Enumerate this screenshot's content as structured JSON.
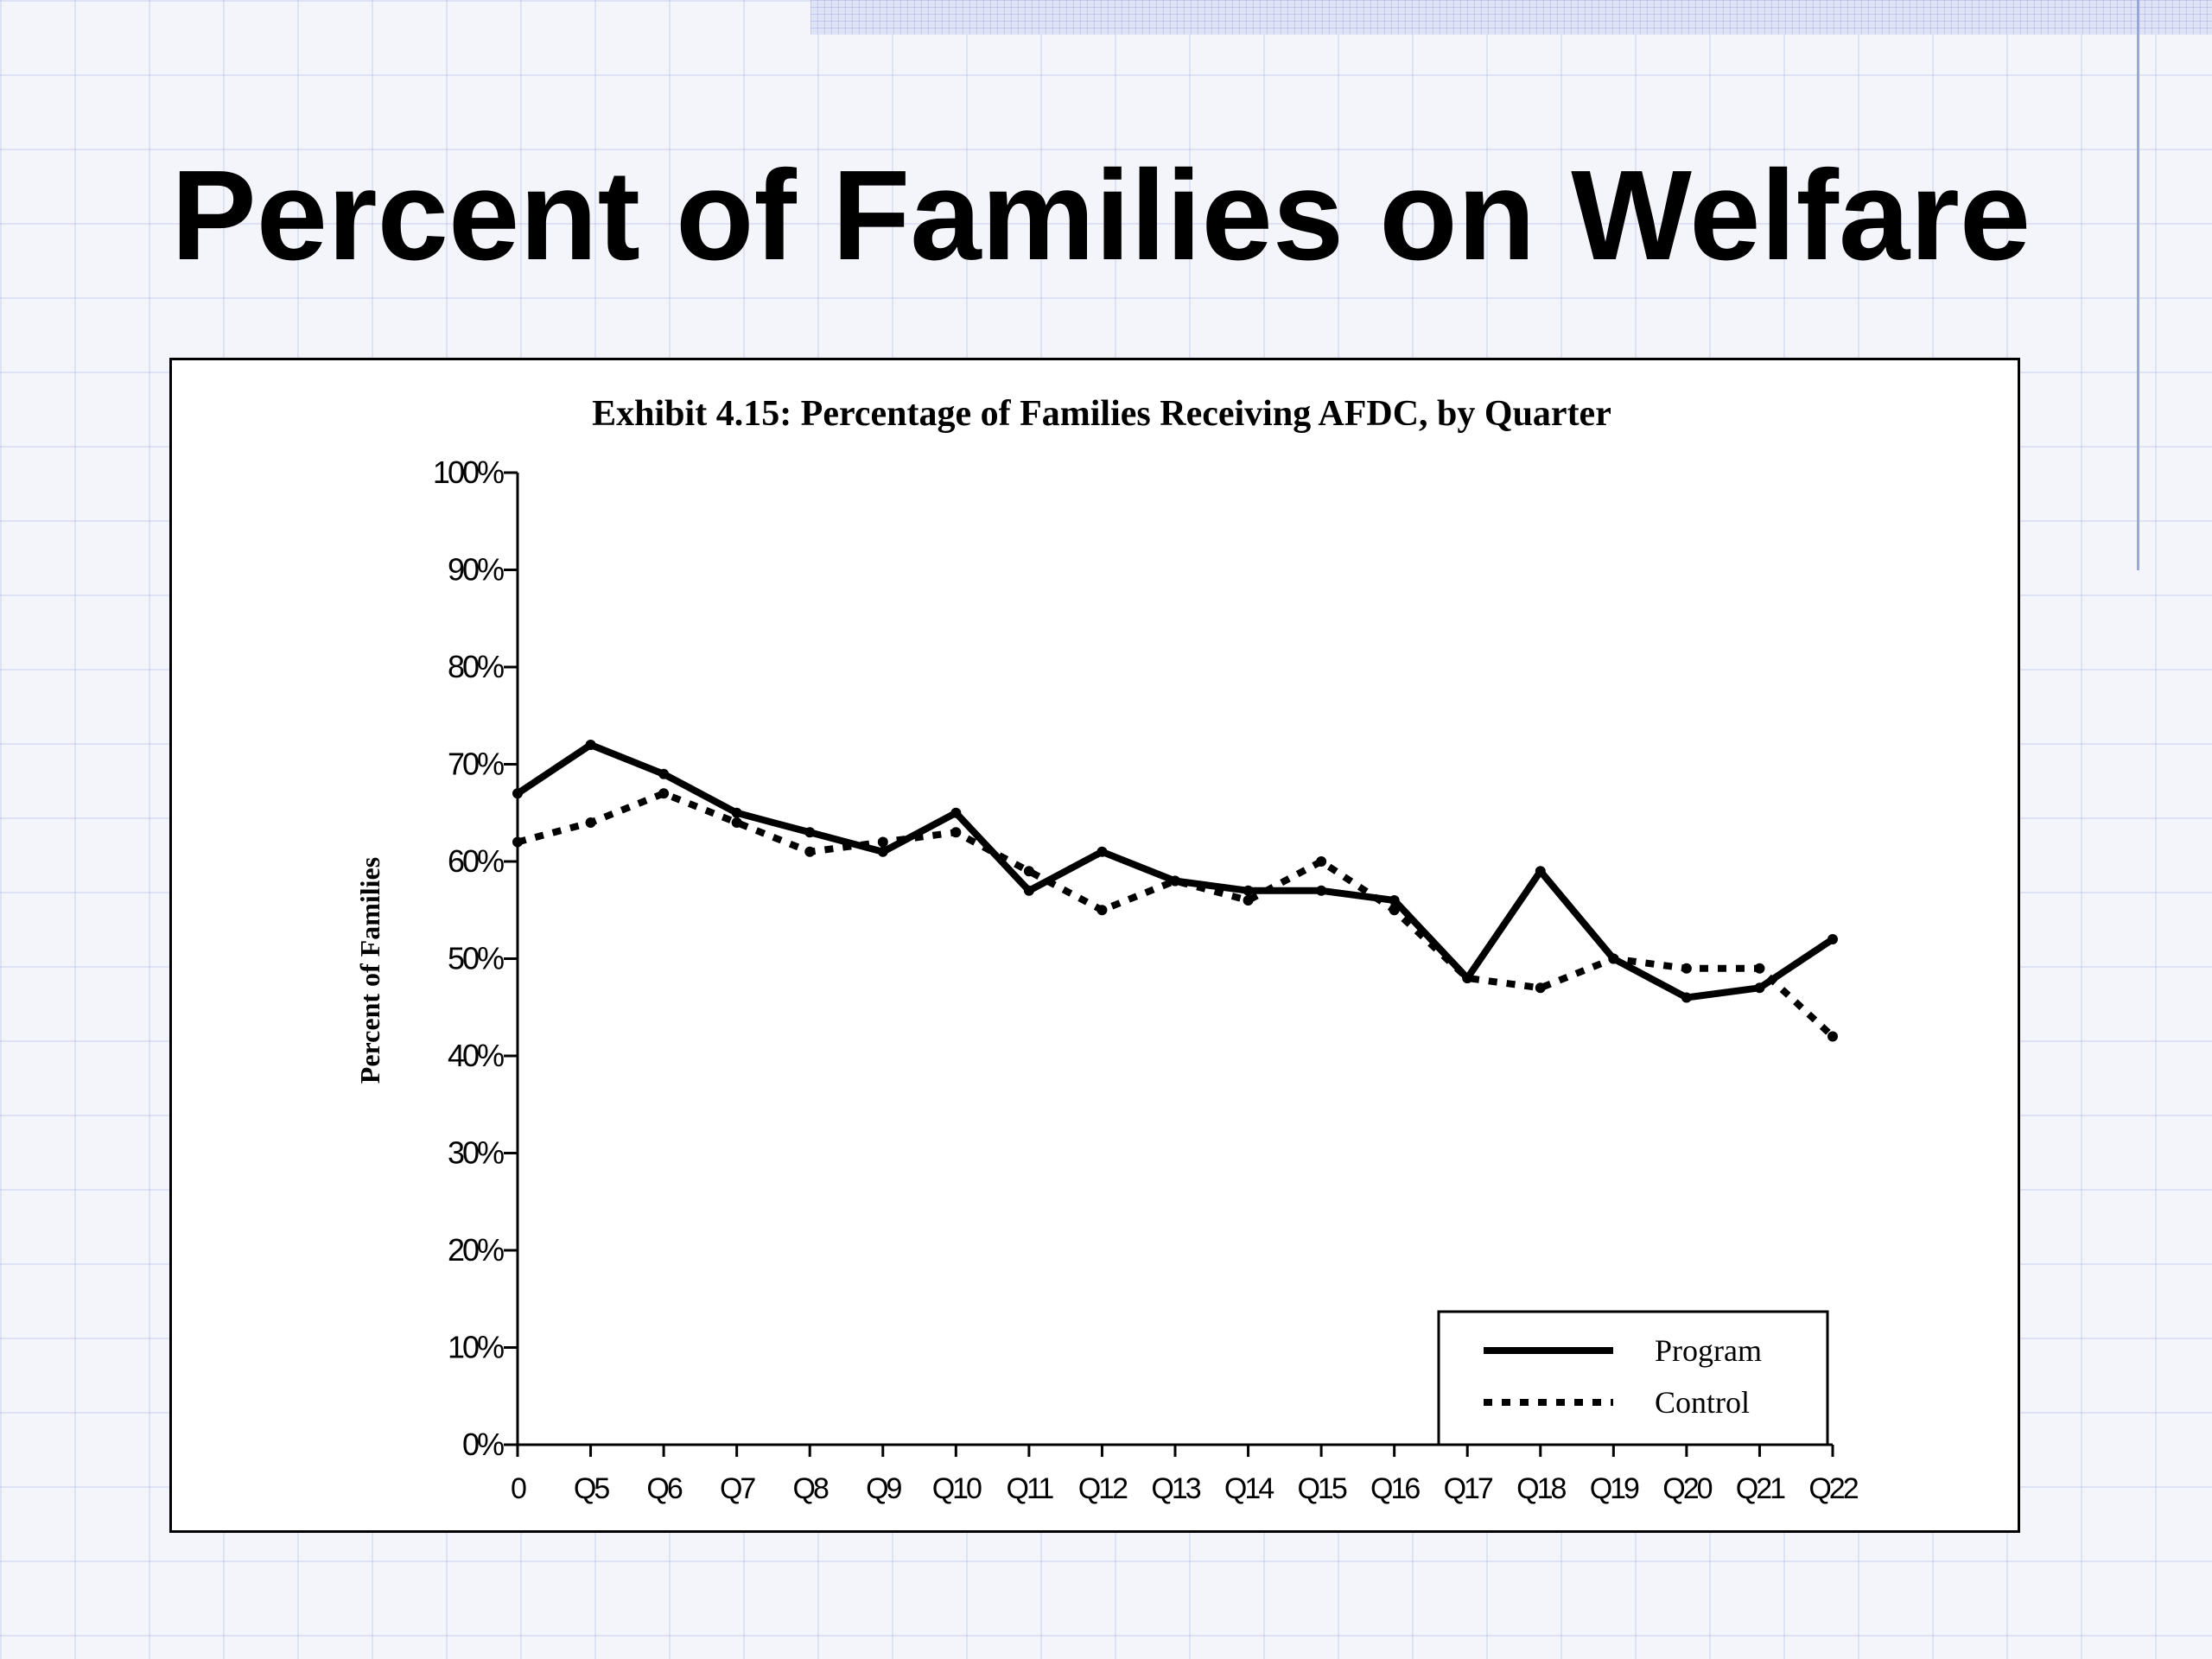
{
  "slide": {
    "title": "Percent of Families on Welfare"
  },
  "chart_data": {
    "type": "line",
    "title": "Exhibit 4.15:  Percentage of Families Receiving AFDC, by Quarter",
    "xlabel": "",
    "ylabel": "Percent of Families",
    "categories": [
      "0",
      "Q5",
      "Q6",
      "Q7",
      "Q8",
      "Q9",
      "Q10",
      "Q11",
      "Q12",
      "Q13",
      "Q14",
      "Q15",
      "Q16",
      "Q17",
      "Q18",
      "Q19",
      "Q20",
      "Q21",
      "Q22"
    ],
    "y_ticks": [
      "0%",
      "10%",
      "20%",
      "30%",
      "40%",
      "50%",
      "60%",
      "70%",
      "80%",
      "90%",
      "100%"
    ],
    "ylim": [
      0,
      100
    ],
    "grid": false,
    "legend_position": "bottom-right",
    "series": [
      {
        "name": "Program",
        "style": "solid",
        "values": [
          67,
          72,
          69,
          65,
          63,
          61,
          65,
          57,
          61,
          58,
          57,
          57,
          56,
          48,
          59,
          50,
          46,
          47,
          52
        ]
      },
      {
        "name": "Control",
        "style": "dotted",
        "values": [
          62,
          64,
          67,
          64,
          61,
          62,
          63,
          59,
          55,
          58,
          56,
          60,
          55,
          48,
          47,
          50,
          49,
          49,
          42
        ]
      }
    ],
    "colors": {
      "line": "#000000",
      "background": "#ffffff"
    }
  }
}
